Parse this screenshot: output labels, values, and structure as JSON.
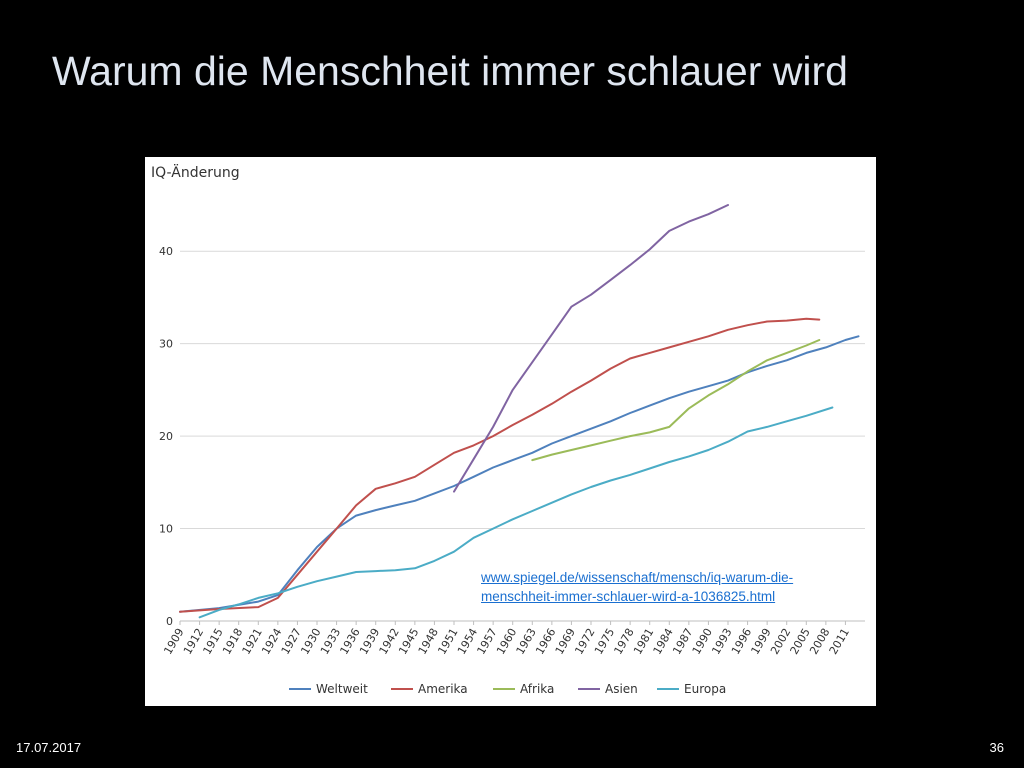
{
  "slide": {
    "title": "Warum die Menschheit immer schlauer wird",
    "date": "17.07.2017",
    "page_number": "36",
    "source_link": "www.spiegel.de/wissenschaft/mensch/iq-warum-die-menschheit-immer-schlauer-wird-a-1036825.html"
  },
  "chart_data": {
    "type": "line",
    "ylabel": "IQ-Änderung",
    "xlabel": "",
    "title": "",
    "xlim": [
      1909,
      2014
    ],
    "ylim": [
      0,
      45
    ],
    "y_ticks": [
      0,
      10,
      20,
      30,
      40
    ],
    "x_ticks": [
      "1909",
      "1912",
      "1915",
      "1918",
      "1921",
      "1924",
      "1927",
      "1930",
      "1933",
      "1936",
      "1939",
      "1942",
      "1945",
      "1948",
      "1951",
      "1954",
      "1957",
      "1960",
      "1963",
      "1966",
      "1969",
      "1972",
      "1975",
      "1978",
      "1981",
      "1984",
      "1987",
      "1990",
      "1993",
      "1996",
      "1999",
      "2002",
      "2005",
      "2008",
      "2011"
    ],
    "grid": "horizontal",
    "legend_position": "bottom",
    "series": [
      {
        "name": "Weltweit",
        "color": "#4f81bd",
        "x": [
          1909,
          1915,
          1921,
          1924,
          1927,
          1930,
          1933,
          1936,
          1939,
          1942,
          1945,
          1948,
          1951,
          1954,
          1957,
          1960,
          1963,
          1966,
          1969,
          1972,
          1975,
          1978,
          1981,
          1984,
          1987,
          1990,
          1993,
          1996,
          1999,
          2002,
          2005,
          2008,
          2011,
          2013
        ],
        "values": [
          1.0,
          1.4,
          2.1,
          2.8,
          5.5,
          8.0,
          10.0,
          11.4,
          12.0,
          12.5,
          13.0,
          13.8,
          14.6,
          15.6,
          16.6,
          17.4,
          18.2,
          19.2,
          20.0,
          20.8,
          21.6,
          22.5,
          23.3,
          24.1,
          24.8,
          25.4,
          26.0,
          26.9,
          27.6,
          28.2,
          29.0,
          29.6,
          30.4,
          30.8
        ]
      },
      {
        "name": "Amerika",
        "color": "#c0504d",
        "x": [
          1909,
          1915,
          1921,
          1924,
          1927,
          1930,
          1933,
          1936,
          1939,
          1942,
          1945,
          1948,
          1951,
          1954,
          1957,
          1960,
          1963,
          1966,
          1969,
          1972,
          1975,
          1978,
          1981,
          1984,
          1987,
          1990,
          1993,
          1996,
          1999,
          2002,
          2005,
          2007
        ],
        "values": [
          1.0,
          1.3,
          1.5,
          2.5,
          5.0,
          7.5,
          10.0,
          12.5,
          14.3,
          14.9,
          15.6,
          16.9,
          18.2,
          19.0,
          20.0,
          21.2,
          22.3,
          23.5,
          24.8,
          26.0,
          27.3,
          28.4,
          29.0,
          29.6,
          30.2,
          30.8,
          31.5,
          32.0,
          32.4,
          32.5,
          32.7,
          32.6
        ]
      },
      {
        "name": "Afrika",
        "color": "#9bbb59",
        "x": [
          1963,
          1966,
          1969,
          1972,
          1975,
          1978,
          1981,
          1984,
          1987,
          1990,
          1993,
          1996,
          1999,
          2002,
          2005,
          2007
        ],
        "values": [
          17.4,
          18.0,
          18.5,
          19.0,
          19.5,
          20.0,
          20.4,
          21.0,
          23.0,
          24.4,
          25.6,
          27.0,
          28.2,
          29.0,
          29.8,
          30.4
        ]
      },
      {
        "name": "Asien",
        "color": "#8064a2",
        "x": [
          1951,
          1954,
          1957,
          1960,
          1963,
          1966,
          1969,
          1972,
          1975,
          1978,
          1981,
          1984,
          1987,
          1990,
          1993
        ],
        "values": [
          14.0,
          17.5,
          21.0,
          25.0,
          28.0,
          31.0,
          34.0,
          35.3,
          36.9,
          38.5,
          40.2,
          42.2,
          43.2,
          44.0,
          45.0
        ]
      },
      {
        "name": "Europa",
        "color": "#4bacc6",
        "x": [
          1912,
          1915,
          1918,
          1921,
          1924,
          1927,
          1930,
          1933,
          1936,
          1939,
          1942,
          1945,
          1948,
          1951,
          1954,
          1957,
          1960,
          1963,
          1966,
          1969,
          1972,
          1975,
          1978,
          1981,
          1984,
          1987,
          1990,
          1993,
          1996,
          1999,
          2002,
          2005,
          2009
        ],
        "values": [
          0.4,
          1.2,
          1.8,
          2.5,
          3.0,
          3.7,
          4.3,
          4.8,
          5.3,
          5.4,
          5.5,
          5.7,
          6.5,
          7.5,
          9.0,
          10.0,
          11.0,
          11.9,
          12.8,
          13.7,
          14.5,
          15.2,
          15.8,
          16.5,
          17.2,
          17.8,
          18.5,
          19.4,
          20.5,
          21.0,
          21.6,
          22.2,
          23.1
        ]
      }
    ]
  }
}
